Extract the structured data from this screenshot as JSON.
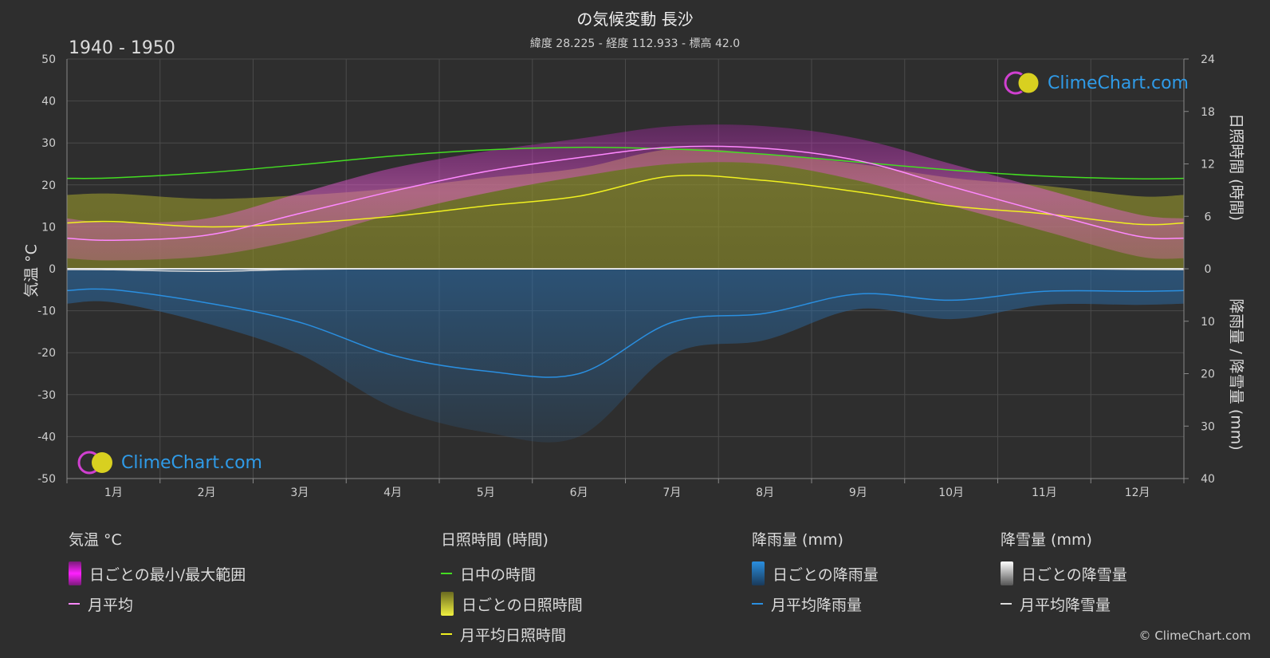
{
  "header": {
    "title": "の気候変動 長沙",
    "subtitle": "緯度 28.225 - 経度 112.933 - 標高 42.0",
    "period": "1940 - 1950"
  },
  "axes": {
    "left_label": "気温 °C",
    "right_top_label": "日照時間 (時間)",
    "right_bottom_label": "降雨量 / 降雪量 (mm)"
  },
  "logo_text": "ClimeChart.com",
  "copyright": "© ClimeChart.com",
  "legend": {
    "temperature": {
      "title": "気温 °C",
      "range": "日ごとの最小/最大範囲",
      "mean": "月平均"
    },
    "sunshine": {
      "title": "日照時間 (時間)",
      "daylight": "日中の時間",
      "daily": "日ごとの日照時間",
      "mean": "月平均日照時間"
    },
    "rain": {
      "title": "降雨量 (mm)",
      "daily": "日ごとの降雨量",
      "mean": "月平均降雨量"
    },
    "snow": {
      "title": "降雪量 (mm)",
      "daily": "日ごとの降雪量",
      "mean": "月平均降雪量"
    }
  },
  "colors": {
    "background": "#2e2e2e",
    "temp_range": "#e020e0",
    "temp_mean": "#ff88ff",
    "daylight": "#44dd22",
    "sunshine": "#c8c832",
    "sunshine_mean": "#f0f020",
    "rain": "#2a8fe0",
    "snow": "#dddddd",
    "logo": "#2f9be8"
  },
  "chart_data": {
    "type": "line",
    "categories": [
      "1月",
      "2月",
      "3月",
      "4月",
      "5月",
      "6月",
      "7月",
      "8月",
      "9月",
      "10月",
      "11月",
      "12月"
    ],
    "left_axis": {
      "label": "気温 °C",
      "ylim": [
        -50,
        50
      ],
      "ticks": [
        50,
        40,
        30,
        20,
        10,
        0,
        -10,
        -20,
        -30,
        -40,
        -50
      ]
    },
    "right_axis_sun": {
      "label": "日照時間 (時間)",
      "ylim": [
        0,
        24
      ],
      "ticks": [
        24,
        18,
        12,
        6,
        0
      ]
    },
    "right_axis_precip": {
      "label": "降雨量 / 降雪量 (mm)",
      "ylim": [
        0,
        40
      ],
      "ticks": [
        0,
        10,
        20,
        30,
        40
      ]
    },
    "series": [
      {
        "name": "月平均",
        "axis": "temp",
        "values": [
          6.8,
          8.0,
          13.2,
          18.5,
          23.2,
          26.5,
          29.0,
          28.7,
          25.8,
          19.6,
          13.5,
          7.8
        ]
      },
      {
        "name": "日中の時間",
        "axis": "sun",
        "values": [
          10.4,
          11.0,
          11.9,
          12.9,
          13.6,
          13.9,
          13.7,
          13.1,
          12.2,
          11.3,
          10.6,
          10.3
        ]
      },
      {
        "name": "月平均日照時間",
        "axis": "sun",
        "values": [
          5.4,
          4.8,
          5.2,
          6.0,
          7.2,
          8.3,
          10.6,
          10.1,
          8.8,
          7.2,
          6.3,
          5.1
        ]
      },
      {
        "name": "月平均降雨量",
        "axis": "precip",
        "values": [
          4.0,
          6.5,
          10.2,
          16.5,
          19.5,
          20.0,
          10.2,
          8.5,
          4.8,
          6.0,
          4.3,
          4.3
        ]
      },
      {
        "name": "月平均降雪量",
        "axis": "precip",
        "values": [
          0.2,
          0.5,
          0.1,
          0,
          0,
          0,
          0,
          0,
          0,
          0,
          0,
          0.1
        ]
      }
    ],
    "temp_range": {
      "min": [
        2,
        3,
        7,
        13,
        18,
        22,
        25,
        25,
        21,
        15,
        9,
        3
      ],
      "max": [
        11,
        12,
        18,
        24,
        28,
        31,
        34,
        34,
        31,
        25,
        19,
        13
      ]
    },
    "grid": true
  }
}
